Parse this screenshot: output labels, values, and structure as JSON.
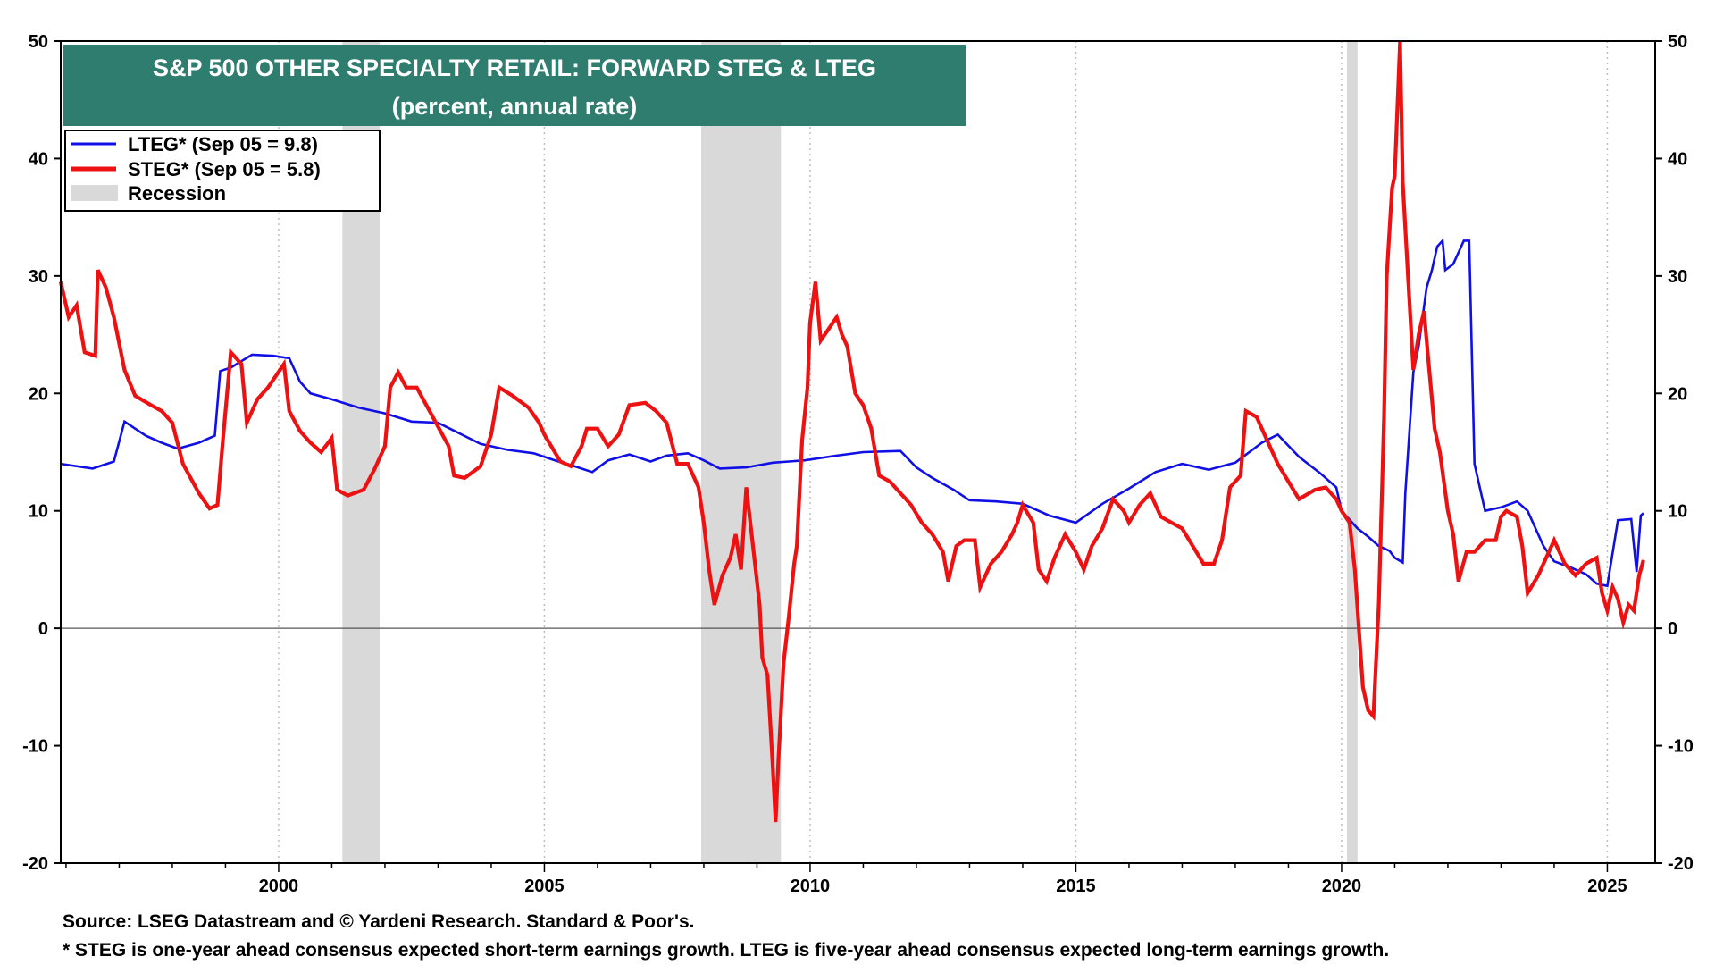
{
  "colors": {
    "lteg": "#1010e6",
    "steg": "#ee1111",
    "recession": "#d9d9d9",
    "title_bg": "#2e7d6e",
    "grid": "#bdbdbd"
  },
  "footer": {
    "source": "Source: LSEG Datastream and © Yardeni Research. Standard & Poor's.",
    "note": "* STEG is one-year ahead consensus expected short-term earnings growth. LTEG is five-year ahead consensus expected long-term earnings growth."
  },
  "chart_data": {
    "type": "line",
    "title": "S&P 500 OTHER SPECIALTY RETAIL: FORWARD STEG & LTEG",
    "subtitle": "(percent, annual rate)",
    "xlim": [
      1995.9,
      2025.9
    ],
    "ylim": [
      -20,
      50
    ],
    "x_ticks": [
      2000,
      2005,
      2010,
      2015,
      2020,
      2025
    ],
    "x_tick_labels": [
      "2000",
      "2005",
      "2010",
      "2015",
      "2020",
      "2025"
    ],
    "y_ticks": [
      -20,
      -10,
      0,
      10,
      20,
      30,
      40,
      50
    ],
    "y_tick_labels": [
      "-20",
      "-10",
      "0",
      "10",
      "20",
      "30",
      "40",
      "50"
    ],
    "grid": "vertical dotted at year ticks; solid zero line",
    "legend_position": "top-left",
    "legend": [
      {
        "label": "LTEG* (Sep 05 = 9.8)",
        "kind": "line",
        "color": "#1010e6"
      },
      {
        "label": "STEG* (Sep 05 = 5.8)",
        "kind": "line",
        "color": "#ee1111"
      },
      {
        "label": "Recession",
        "kind": "band",
        "color": "#d9d9d9"
      }
    ],
    "recessions": [
      [
        2001.2,
        2001.9
      ],
      [
        2007.95,
        2009.45
      ],
      [
        2020.1,
        2020.3
      ]
    ],
    "series": [
      {
        "name": "LTEG* (Sep 05 = 9.8)",
        "color": "#1010e6",
        "points": [
          [
            1995.9,
            14.0
          ],
          [
            1996.5,
            13.6
          ],
          [
            1996.9,
            14.2
          ],
          [
            1997.1,
            17.6
          ],
          [
            1997.5,
            16.4
          ],
          [
            1997.8,
            15.8
          ],
          [
            1998.1,
            15.3
          ],
          [
            1998.5,
            15.8
          ],
          [
            1998.8,
            16.4
          ],
          [
            1998.9,
            21.9
          ],
          [
            1999.1,
            22.2
          ],
          [
            1999.5,
            23.3
          ],
          [
            1999.9,
            23.2
          ],
          [
            2000.2,
            23.0
          ],
          [
            2000.4,
            21.0
          ],
          [
            2000.6,
            20.0
          ],
          [
            2001.0,
            19.5
          ],
          [
            2001.5,
            18.8
          ],
          [
            2002.0,
            18.3
          ],
          [
            2002.5,
            17.6
          ],
          [
            2003.0,
            17.5
          ],
          [
            2003.4,
            16.6
          ],
          [
            2003.8,
            15.7
          ],
          [
            2004.3,
            15.2
          ],
          [
            2004.8,
            14.9
          ],
          [
            2005.2,
            14.3
          ],
          [
            2005.5,
            13.9
          ],
          [
            2005.9,
            13.3
          ],
          [
            2006.2,
            14.3
          ],
          [
            2006.6,
            14.8
          ],
          [
            2007.0,
            14.2
          ],
          [
            2007.3,
            14.7
          ],
          [
            2007.7,
            14.9
          ],
          [
            2008.0,
            14.3
          ],
          [
            2008.3,
            13.6
          ],
          [
            2008.8,
            13.7
          ],
          [
            2009.3,
            14.1
          ],
          [
            2009.9,
            14.3
          ],
          [
            2010.5,
            14.7
          ],
          [
            2011.0,
            15.0
          ],
          [
            2011.7,
            15.1
          ],
          [
            2012.0,
            13.7
          ],
          [
            2012.3,
            12.8
          ],
          [
            2012.7,
            11.8
          ],
          [
            2013.0,
            10.9
          ],
          [
            2013.5,
            10.8
          ],
          [
            2014.0,
            10.6
          ],
          [
            2014.5,
            9.6
          ],
          [
            2015.0,
            9.0
          ],
          [
            2015.5,
            10.6
          ],
          [
            2016.0,
            11.9
          ],
          [
            2016.5,
            13.3
          ],
          [
            2017.0,
            14.0
          ],
          [
            2017.5,
            13.5
          ],
          [
            2018.0,
            14.1
          ],
          [
            2018.5,
            15.8
          ],
          [
            2018.8,
            16.5
          ],
          [
            2019.2,
            14.6
          ],
          [
            2019.6,
            13.2
          ],
          [
            2019.9,
            12.0
          ],
          [
            2020.0,
            10.0
          ],
          [
            2020.3,
            8.5
          ],
          [
            2020.5,
            7.8
          ],
          [
            2020.7,
            7.0
          ],
          [
            2020.9,
            6.6
          ],
          [
            2021.0,
            6.0
          ],
          [
            2021.15,
            5.6
          ],
          [
            2021.2,
            11.5
          ],
          [
            2021.35,
            21.8
          ],
          [
            2021.45,
            24.0
          ],
          [
            2021.6,
            29.0
          ],
          [
            2021.7,
            30.5
          ],
          [
            2021.8,
            32.5
          ],
          [
            2021.9,
            33.0
          ],
          [
            2021.95,
            30.5
          ],
          [
            2022.1,
            31.0
          ],
          [
            2022.2,
            32.0
          ],
          [
            2022.3,
            33.0
          ],
          [
            2022.4,
            33.0
          ],
          [
            2022.5,
            14.0
          ],
          [
            2022.7,
            10.0
          ],
          [
            2023.0,
            10.3
          ],
          [
            2023.3,
            10.8
          ],
          [
            2023.5,
            10.0
          ],
          [
            2023.8,
            7.0
          ],
          [
            2024.0,
            5.7
          ],
          [
            2024.3,
            5.2
          ],
          [
            2024.6,
            4.6
          ],
          [
            2024.8,
            3.8
          ],
          [
            2025.0,
            3.6
          ],
          [
            2025.2,
            9.2
          ],
          [
            2025.45,
            9.3
          ],
          [
            2025.55,
            4.8
          ],
          [
            2025.63,
            9.6
          ],
          [
            2025.68,
            9.8
          ]
        ]
      },
      {
        "name": "STEG* (Sep 05 = 5.8)",
        "color": "#ee1111",
        "points": [
          [
            1995.9,
            29.5
          ],
          [
            1996.05,
            26.5
          ],
          [
            1996.2,
            27.5
          ],
          [
            1996.35,
            23.5
          ],
          [
            1996.55,
            23.2
          ],
          [
            1996.6,
            30.5
          ],
          [
            1996.75,
            29.0
          ],
          [
            1996.9,
            26.5
          ],
          [
            1997.1,
            22.0
          ],
          [
            1997.3,
            19.8
          ],
          [
            1997.6,
            19.0
          ],
          [
            1997.8,
            18.5
          ],
          [
            1998.0,
            17.5
          ],
          [
            1998.2,
            14.0
          ],
          [
            1998.5,
            11.5
          ],
          [
            1998.7,
            10.2
          ],
          [
            1998.85,
            10.5
          ],
          [
            1998.95,
            16.0
          ],
          [
            1999.1,
            23.5
          ],
          [
            1999.3,
            22.5
          ],
          [
            1999.4,
            17.5
          ],
          [
            1999.6,
            19.5
          ],
          [
            1999.8,
            20.5
          ],
          [
            2000.1,
            22.5
          ],
          [
            2000.2,
            18.5
          ],
          [
            2000.4,
            16.8
          ],
          [
            2000.6,
            15.8
          ],
          [
            2000.8,
            15.0
          ],
          [
            2001.0,
            16.2
          ],
          [
            2001.1,
            11.8
          ],
          [
            2001.3,
            11.3
          ],
          [
            2001.6,
            11.8
          ],
          [
            2001.8,
            13.5
          ],
          [
            2002.0,
            15.5
          ],
          [
            2002.1,
            20.5
          ],
          [
            2002.25,
            21.8
          ],
          [
            2002.4,
            20.5
          ],
          [
            2002.6,
            20.5
          ],
          [
            2002.9,
            18.0
          ],
          [
            2003.2,
            15.5
          ],
          [
            2003.3,
            13.0
          ],
          [
            2003.5,
            12.8
          ],
          [
            2003.8,
            13.8
          ],
          [
            2004.0,
            16.5
          ],
          [
            2004.15,
            20.5
          ],
          [
            2004.4,
            19.8
          ],
          [
            2004.7,
            18.8
          ],
          [
            2004.9,
            17.5
          ],
          [
            2005.0,
            16.5
          ],
          [
            2005.3,
            14.2
          ],
          [
            2005.5,
            13.8
          ],
          [
            2005.7,
            15.5
          ],
          [
            2005.8,
            17.0
          ],
          [
            2006.0,
            17.0
          ],
          [
            2006.2,
            15.5
          ],
          [
            2006.4,
            16.5
          ],
          [
            2006.6,
            19.0
          ],
          [
            2006.9,
            19.2
          ],
          [
            2007.1,
            18.5
          ],
          [
            2007.3,
            17.5
          ],
          [
            2007.5,
            14.0
          ],
          [
            2007.7,
            14.0
          ],
          [
            2007.9,
            12.0
          ],
          [
            2008.0,
            9.0
          ],
          [
            2008.1,
            5.0
          ],
          [
            2008.2,
            2.0
          ],
          [
            2008.35,
            4.5
          ],
          [
            2008.5,
            6.0
          ],
          [
            2008.6,
            8.0
          ],
          [
            2008.7,
            5.0
          ],
          [
            2008.8,
            12.0
          ],
          [
            2008.95,
            6.0
          ],
          [
            2009.05,
            2.0
          ],
          [
            2009.1,
            -2.5
          ],
          [
            2009.2,
            -4.0
          ],
          [
            2009.3,
            -12.0
          ],
          [
            2009.35,
            -16.5
          ],
          [
            2009.4,
            -11.5
          ],
          [
            2009.5,
            -3.0
          ],
          [
            2009.6,
            1.0
          ],
          [
            2009.7,
            5.5
          ],
          [
            2009.75,
            7.0
          ],
          [
            2009.85,
            16.0
          ],
          [
            2009.95,
            20.5
          ],
          [
            2010.0,
            26.0
          ],
          [
            2010.1,
            29.5
          ],
          [
            2010.2,
            24.5
          ],
          [
            2010.35,
            25.5
          ],
          [
            2010.5,
            26.5
          ],
          [
            2010.6,
            25.0
          ],
          [
            2010.7,
            24.0
          ],
          [
            2010.85,
            20.0
          ],
          [
            2011.0,
            19.0
          ],
          [
            2011.15,
            17.0
          ],
          [
            2011.3,
            13.0
          ],
          [
            2011.5,
            12.5
          ],
          [
            2011.7,
            11.5
          ],
          [
            2011.9,
            10.5
          ],
          [
            2012.1,
            9.0
          ],
          [
            2012.3,
            8.0
          ],
          [
            2012.5,
            6.5
          ],
          [
            2012.6,
            4.0
          ],
          [
            2012.75,
            7.0
          ],
          [
            2012.9,
            7.5
          ],
          [
            2013.1,
            7.5
          ],
          [
            2013.2,
            3.5
          ],
          [
            2013.4,
            5.5
          ],
          [
            2013.6,
            6.5
          ],
          [
            2013.8,
            8.0
          ],
          [
            2013.9,
            9.0
          ],
          [
            2014.0,
            10.5
          ],
          [
            2014.2,
            9.0
          ],
          [
            2014.3,
            5.0
          ],
          [
            2014.45,
            4.0
          ],
          [
            2014.6,
            6.0
          ],
          [
            2014.8,
            8.0
          ],
          [
            2015.0,
            6.5
          ],
          [
            2015.15,
            5.0
          ],
          [
            2015.3,
            7.0
          ],
          [
            2015.5,
            8.5
          ],
          [
            2015.7,
            11.0
          ],
          [
            2015.9,
            10.0
          ],
          [
            2016.0,
            9.0
          ],
          [
            2016.2,
            10.5
          ],
          [
            2016.4,
            11.5
          ],
          [
            2016.6,
            9.5
          ],
          [
            2016.8,
            9.0
          ],
          [
            2017.0,
            8.5
          ],
          [
            2017.2,
            7.0
          ],
          [
            2017.4,
            5.5
          ],
          [
            2017.6,
            5.5
          ],
          [
            2017.75,
            7.5
          ],
          [
            2017.9,
            12.0
          ],
          [
            2018.1,
            13.0
          ],
          [
            2018.2,
            18.5
          ],
          [
            2018.4,
            18.0
          ],
          [
            2018.6,
            16.0
          ],
          [
            2018.8,
            14.0
          ],
          [
            2019.0,
            12.5
          ],
          [
            2019.2,
            11.0
          ],
          [
            2019.5,
            11.8
          ],
          [
            2019.7,
            12.0
          ],
          [
            2019.8,
            11.5
          ],
          [
            2019.9,
            11.0
          ],
          [
            2020.0,
            10.0
          ],
          [
            2020.15,
            9.0
          ],
          [
            2020.25,
            5.0
          ],
          [
            2020.4,
            -5.0
          ],
          [
            2020.5,
            -7.0
          ],
          [
            2020.6,
            -7.5
          ],
          [
            2020.7,
            2.0
          ],
          [
            2020.8,
            18.0
          ],
          [
            2020.85,
            30.0
          ],
          [
            2020.95,
            37.5
          ],
          [
            2021.0,
            38.5
          ],
          [
            2021.1,
            50.0
          ],
          [
            2021.15,
            38.0
          ],
          [
            2021.25,
            30.0
          ],
          [
            2021.35,
            22.0
          ],
          [
            2021.45,
            25.0
          ],
          [
            2021.55,
            27.0
          ],
          [
            2021.65,
            22.0
          ],
          [
            2021.75,
            17.0
          ],
          [
            2021.85,
            15.0
          ],
          [
            2022.0,
            10.0
          ],
          [
            2022.1,
            8.0
          ],
          [
            2022.2,
            4.0
          ],
          [
            2022.35,
            6.5
          ],
          [
            2022.5,
            6.5
          ],
          [
            2022.7,
            7.5
          ],
          [
            2022.9,
            7.5
          ],
          [
            2023.0,
            9.5
          ],
          [
            2023.1,
            10.0
          ],
          [
            2023.3,
            9.5
          ],
          [
            2023.4,
            7.0
          ],
          [
            2023.5,
            3.0
          ],
          [
            2023.7,
            4.5
          ],
          [
            2023.9,
            6.5
          ],
          [
            2024.0,
            7.5
          ],
          [
            2024.2,
            5.5
          ],
          [
            2024.4,
            4.5
          ],
          [
            2024.6,
            5.5
          ],
          [
            2024.8,
            6.0
          ],
          [
            2024.9,
            3.0
          ],
          [
            2025.0,
            1.5
          ],
          [
            2025.1,
            3.5
          ],
          [
            2025.2,
            2.5
          ],
          [
            2025.3,
            0.5
          ],
          [
            2025.4,
            2.0
          ],
          [
            2025.5,
            1.5
          ],
          [
            2025.6,
            4.5
          ],
          [
            2025.68,
            5.8
          ]
        ]
      }
    ]
  }
}
